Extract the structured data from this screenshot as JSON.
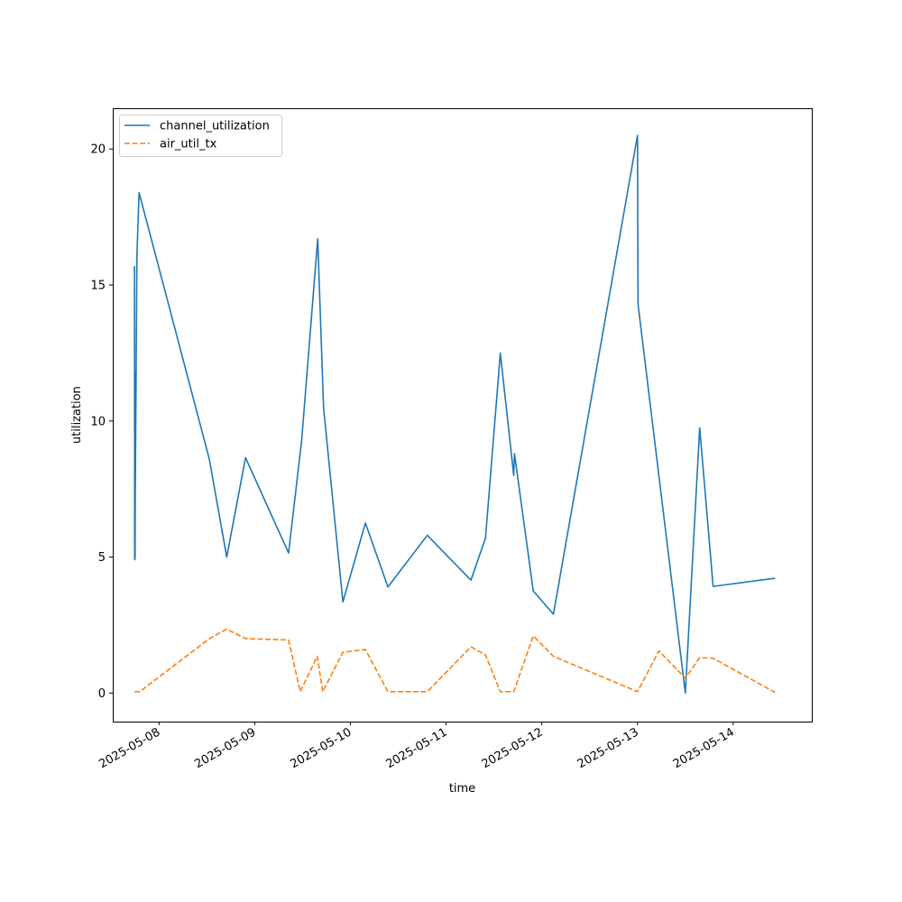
{
  "chart_data": {
    "type": "line",
    "title": "",
    "xlabel": "time",
    "ylabel": "utilization",
    "xlim": [
      "2025-05-07T12:24",
      "2025-05-14T19:43"
    ],
    "ylim": [
      -1.05,
      21.5
    ],
    "grid": false,
    "legend_position": "top-left",
    "x_ticks": [
      "2025-05-08",
      "2025-05-09",
      "2025-05-10",
      "2025-05-11",
      "2025-05-12",
      "2025-05-13",
      "2025-05-14"
    ],
    "y_ticks": [
      0,
      5,
      10,
      15,
      20
    ],
    "series": [
      {
        "name": "channel_utilization",
        "color": "#1f77b4",
        "style": "solid",
        "points": [
          [
            "2025-05-07T17:51",
            15.7
          ],
          [
            "2025-05-07T17:54",
            4.9
          ],
          [
            "2025-05-07T17:57",
            11.8
          ],
          [
            "2025-05-07T18:00",
            4.95
          ],
          [
            "2025-05-07T18:03",
            7.4
          ],
          [
            "2025-05-07T18:28",
            16.1
          ],
          [
            "2025-05-07T19:00",
            18.4
          ],
          [
            "2025-05-08T12:37",
            8.6
          ],
          [
            "2025-05-08T16:59",
            5.0
          ],
          [
            "2025-05-08T21:42",
            8.65
          ],
          [
            "2025-05-09T08:30",
            5.15
          ],
          [
            "2025-05-09T11:47",
            9.3
          ],
          [
            "2025-05-09T15:48",
            16.7
          ],
          [
            "2025-05-09T17:16",
            10.5
          ],
          [
            "2025-05-09T22:07",
            3.35
          ],
          [
            "2025-05-10T03:46",
            6.25
          ],
          [
            "2025-05-10T09:25",
            3.9
          ],
          [
            "2025-05-10T19:17",
            5.8
          ],
          [
            "2025-05-11T06:14",
            4.15
          ],
          [
            "2025-05-11T09:53",
            5.7
          ],
          [
            "2025-05-11T13:36",
            12.5
          ],
          [
            "2025-05-11T16:58",
            8.0
          ],
          [
            "2025-05-11T17:09",
            8.8
          ],
          [
            "2025-05-11T21:52",
            3.75
          ],
          [
            "2025-05-12T02:55",
            2.9
          ],
          [
            "2025-05-13T00:00",
            20.5
          ],
          [
            "2025-05-13T00:08",
            14.3
          ],
          [
            "2025-05-13T12:00",
            0.0
          ],
          [
            "2025-05-13T15:36",
            9.75
          ],
          [
            "2025-05-13T18:58",
            3.92
          ],
          [
            "2025-05-14T10:31",
            4.22
          ]
        ]
      },
      {
        "name": "air_util_tx",
        "color": "#ff7f0e",
        "style": "dashed",
        "points": [
          [
            "2025-05-07T17:51",
            0.05
          ],
          [
            "2025-05-07T19:10",
            0.05
          ],
          [
            "2025-05-08T12:37",
            2.0
          ],
          [
            "2025-05-08T16:59",
            2.35
          ],
          [
            "2025-05-08T21:42",
            2.0
          ],
          [
            "2025-05-09T08:30",
            1.95
          ],
          [
            "2025-05-09T11:25",
            0.05
          ],
          [
            "2025-05-09T15:41",
            1.35
          ],
          [
            "2025-05-09T17:04",
            0.05
          ],
          [
            "2025-05-09T22:07",
            1.5
          ],
          [
            "2025-05-10T03:46",
            1.6
          ],
          [
            "2025-05-10T09:25",
            0.05
          ],
          [
            "2025-05-10T19:17",
            0.05
          ],
          [
            "2025-05-11T06:14",
            1.7
          ],
          [
            "2025-05-11T09:53",
            1.4
          ],
          [
            "2025-05-11T13:36",
            0.05
          ],
          [
            "2025-05-11T16:58",
            0.05
          ],
          [
            "2025-05-11T21:52",
            2.1
          ],
          [
            "2025-05-12T02:55",
            1.35
          ],
          [
            "2025-05-13T00:00",
            0.05
          ],
          [
            "2025-05-13T05:22",
            1.55
          ],
          [
            "2025-05-13T12:00",
            0.55
          ],
          [
            "2025-05-13T15:36",
            1.3
          ],
          [
            "2025-05-13T18:58",
            1.28
          ],
          [
            "2025-05-14T10:31",
            0.02
          ]
        ]
      }
    ]
  }
}
